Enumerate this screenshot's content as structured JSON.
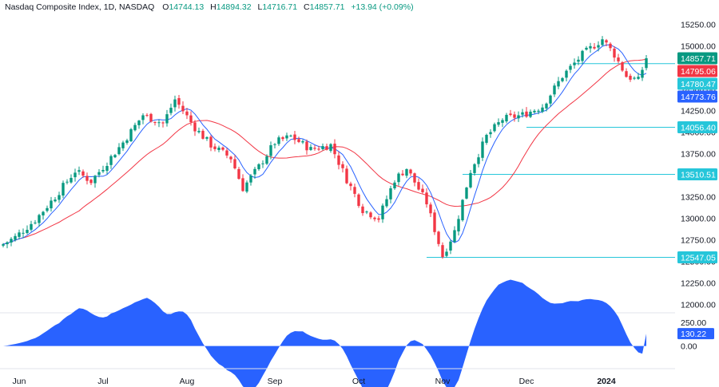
{
  "header": {
    "symbol": "Nasdaq Composite Index, 1D, NASDAQ",
    "open_label": "O",
    "open": "14744.13",
    "high_label": "H",
    "high": "14894.32",
    "low_label": "L",
    "low": "14716.71",
    "close_label": "C",
    "close": "14857.71",
    "change": "+13.94 (+0.09%)"
  },
  "chart_data": {
    "type": "candlestick",
    "price_axis": {
      "ticks": [
        12000,
        12250,
        12500,
        12750,
        13000,
        13250,
        13500,
        13750,
        14000,
        14250,
        14500,
        14750,
        15000,
        15250
      ],
      "tick_labels": [
        "12000.00",
        "12250.00",
        "12500.00",
        "12750.00",
        "13000.00",
        "13250.00",
        "13500.00",
        "13750.00",
        "14000.00",
        "14250.00",
        "14500.00",
        "14750.00",
        "15000.00",
        "15250.00"
      ],
      "range": [
        11940,
        15330
      ]
    },
    "time_axis": {
      "labels": [
        "Jun",
        "Jul",
        "Aug",
        "Sep",
        "Oct",
        "Nov",
        "Dec",
        "2024"
      ],
      "label_indices": [
        4,
        25,
        46,
        68,
        89,
        110,
        131,
        151
      ],
      "label_bold": [
        false,
        false,
        false,
        false,
        false,
        false,
        false,
        true
      ]
    },
    "oscillator": {
      "ticks": [
        0,
        250
      ],
      "tick_labels": [
        "0.00",
        "250.00"
      ],
      "range": [
        -180,
        300
      ],
      "last_value": "130.22",
      "color": "#2962ff"
    },
    "horizontal_lines": [
      {
        "price": 14795.06,
        "label": "14795.06",
        "start_index": 143
      },
      {
        "price": 14056.4,
        "label": "14056.40",
        "start_index": 131
      },
      {
        "price": 13510.51,
        "label": "13510.51",
        "start_index": 115
      },
      {
        "price": 12547.05,
        "label": "12547.05",
        "start_index": 106
      }
    ],
    "price_tags": [
      {
        "price": 14857.71,
        "label": "14857.71",
        "color": "#089981"
      },
      {
        "price": 14795.06,
        "label": "14795.06",
        "color": "#f23645"
      },
      {
        "price": 14780.47,
        "label": "14780.47",
        "color": "#26c6da"
      },
      {
        "price": 14773.76,
        "label": "14773.76",
        "color": "#2962ff"
      }
    ],
    "colors": {
      "up": "#089981",
      "down": "#f23645",
      "fast_ma": "#2962ff",
      "slow_ma": "#f23645",
      "hline": "#26c6da"
    }
  }
}
